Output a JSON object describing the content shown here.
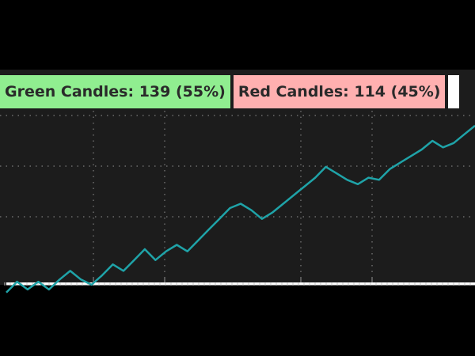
{
  "labels": {
    "green": "Green Candles: 139 (55%)",
    "red": "Red Candles: 114 (45%)"
  },
  "colors": {
    "background": "#1c1c1c",
    "grid": "#6b6b6b",
    "line": "#1fa3a8",
    "baseline": "#ffffff",
    "green_label": "#90ee90",
    "red_label": "#ffb0b0"
  },
  "chart_data": {
    "type": "line",
    "grid": true,
    "x": [
      0,
      1,
      2,
      3,
      4,
      5,
      6,
      7,
      8,
      9,
      10,
      11,
      12,
      13,
      14,
      15,
      16,
      17,
      18,
      19,
      20,
      21,
      22,
      23,
      24,
      25,
      26,
      27,
      28,
      29,
      30,
      31,
      32,
      33,
      34,
      35,
      36,
      37,
      38,
      39,
      40,
      41,
      42,
      43,
      44
    ],
    "series": [
      {
        "values": [
          -0.15,
          0.1,
          -0.08,
          0.1,
          -0.08,
          0.15,
          0.35,
          0.15,
          0.03,
          0.25,
          0.5,
          0.35,
          0.6,
          0.85,
          0.6,
          0.8,
          0.95,
          0.8,
          1.05,
          1.3,
          1.55,
          1.8,
          1.9,
          1.75,
          1.55,
          1.7,
          1.9,
          2.1,
          2.3,
          2.5,
          2.75,
          2.6,
          2.45,
          2.35,
          2.5,
          2.45,
          2.7,
          2.85,
          3.0,
          3.15,
          3.35,
          3.2,
          3.3,
          3.5,
          3.7
        ]
      },
      {
        "values": [
          0.05,
          0.05,
          0.05,
          0.05,
          0.05,
          0.05,
          0.05,
          0.05,
          0.05,
          0.05,
          0.05,
          0.05,
          0.05,
          0.05,
          0.05,
          0.05,
          0.05,
          0.05,
          0.05,
          0.05,
          0.05,
          0.05,
          0.05,
          0.05,
          0.05,
          0.05,
          0.05,
          0.05,
          0.05,
          0.05,
          0.05,
          0.05,
          0.05,
          0.05,
          0.05,
          0.05,
          0.05,
          0.05,
          0.05,
          0.05,
          0.05,
          0.05,
          0.05,
          0.05,
          0.05
        ]
      }
    ],
    "xlim": [
      0,
      44
    ],
    "ylim": [
      -0.3,
      6.6
    ]
  }
}
